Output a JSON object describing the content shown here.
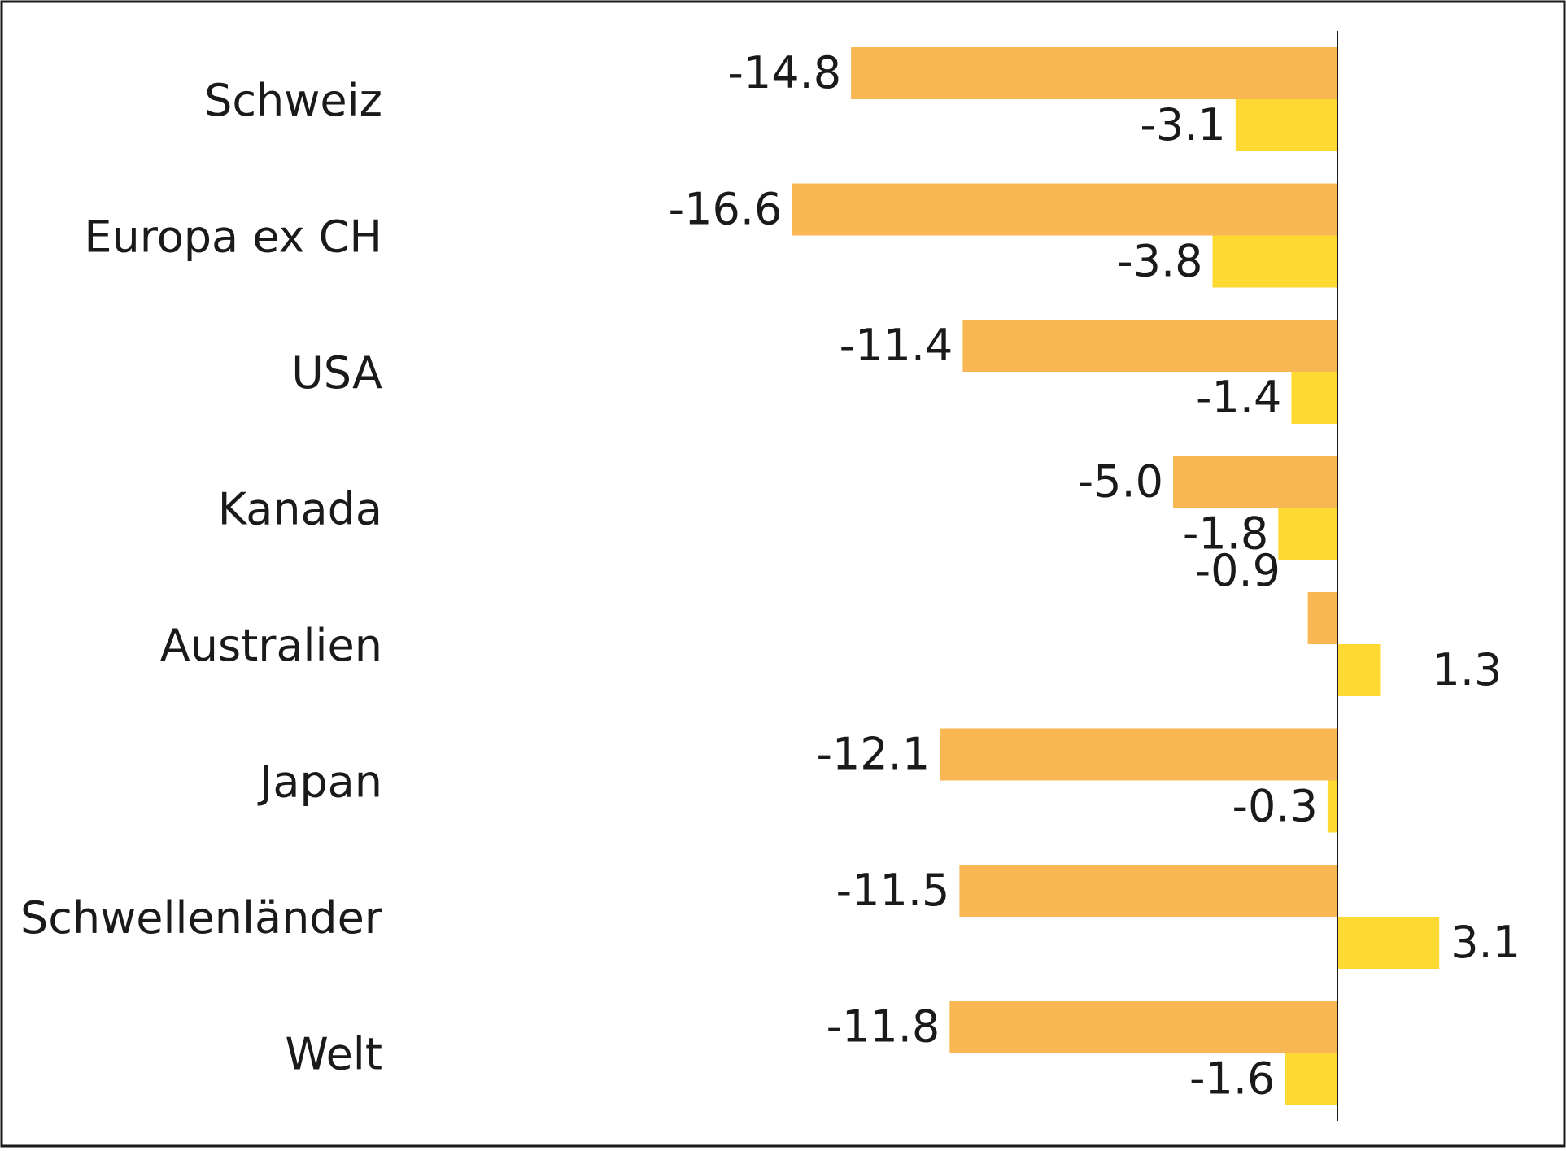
{
  "chart_data": {
    "type": "bar",
    "orientation": "horizontal",
    "categories": [
      "Schweiz",
      "Europa ex CH",
      "USA",
      "Kanada",
      "Australien",
      "Japan",
      "Schwellenländer",
      "Welt"
    ],
    "series": [
      {
        "values": [
          -14.8,
          -16.6,
          -11.4,
          -5.0,
          -0.9,
          -12.1,
          -11.5,
          -11.8
        ]
      },
      {
        "values": [
          -3.1,
          -3.8,
          -1.4,
          -1.8,
          1.3,
          -0.3,
          3.1,
          -1.6
        ]
      }
    ],
    "value_labels": [
      [
        "-14.8",
        "-16.6",
        "-11.4",
        "-5.0",
        "-0.9",
        "-12.1",
        "-11.5",
        "-11.8"
      ],
      [
        "-3.1",
        "-3.8",
        "-1.4",
        "-1.8",
        "1.3",
        "-0.3",
        "3.1",
        "-1.6"
      ]
    ],
    "colors": [
      "#F8B752",
      "#FED932"
    ],
    "xlim": [
      -18.2,
      5.5
    ],
    "grid": false,
    "legend": "none"
  }
}
